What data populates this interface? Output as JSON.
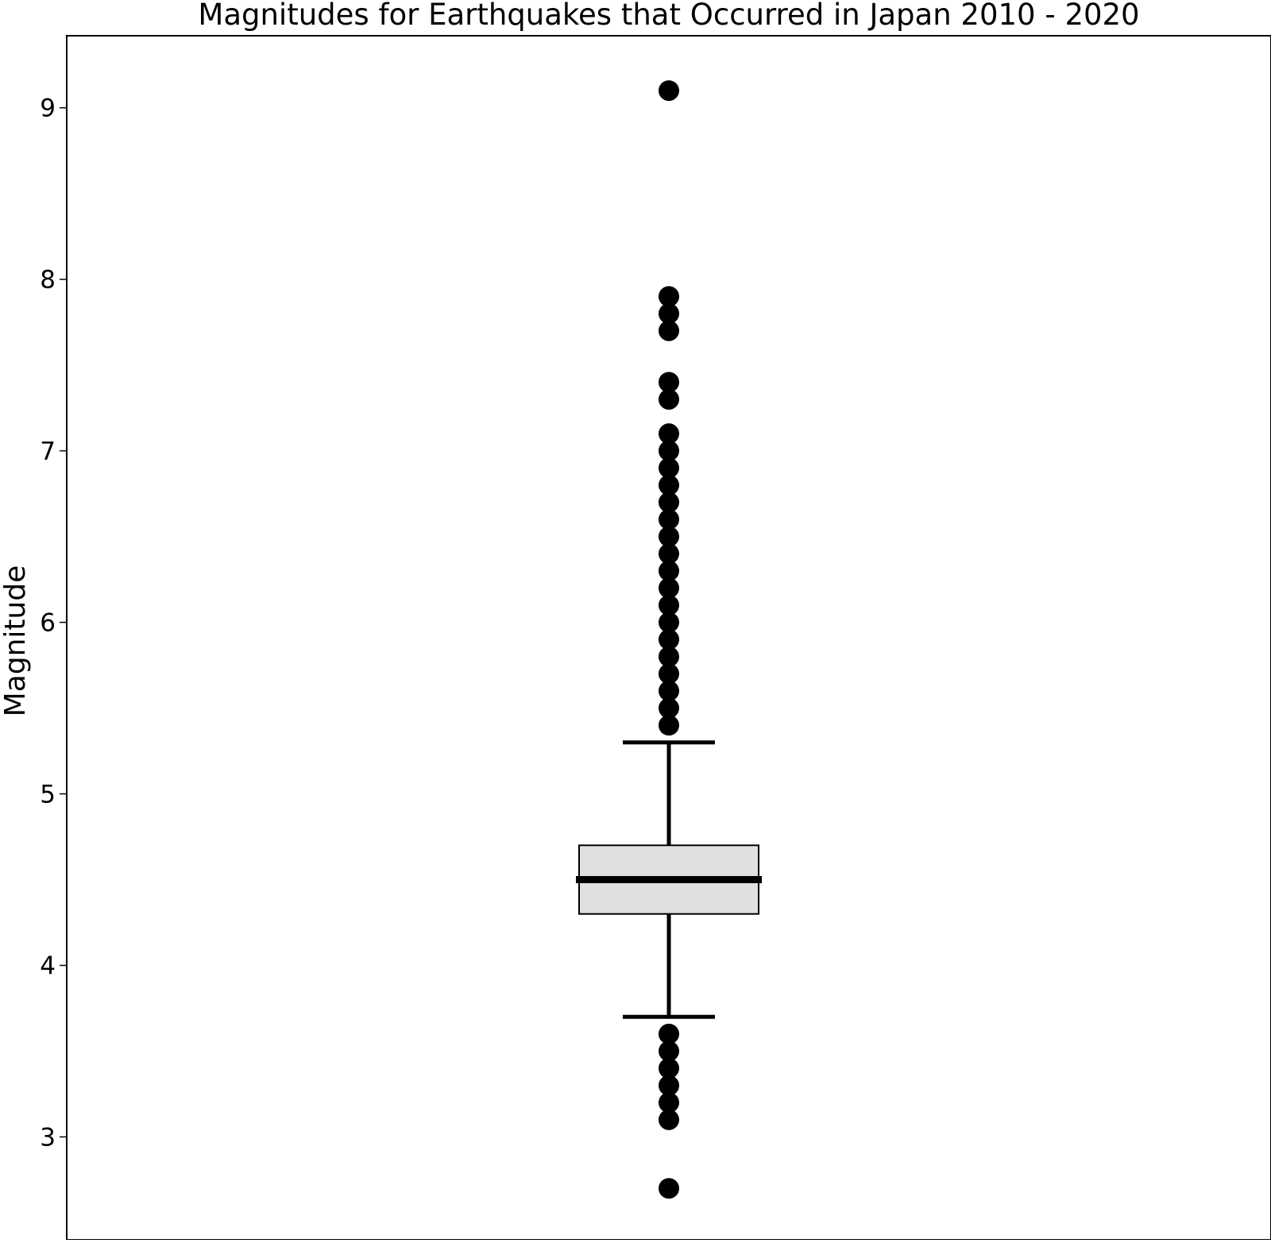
{
  "chart_data": {
    "type": "box",
    "title": "Magnitudes for Earthquakes that Occurred in Japan 2010 - 2020",
    "xlabel": "",
    "ylabel": "Magnitude",
    "ylim": [
      2.4,
      9.42
    ],
    "yticks": [
      3,
      4,
      5,
      6,
      7,
      8,
      9
    ],
    "grid": false,
    "box": {
      "q1": 4.3,
      "median": 4.5,
      "q3": 4.7,
      "whisker_low": 3.7,
      "whisker_high": 5.3,
      "fill_color": "#e0e0e0",
      "line_color": "#000000"
    },
    "outliers": [
      2.7,
      3.1,
      3.2,
      3.3,
      3.4,
      3.5,
      3.6,
      5.4,
      5.5,
      5.6,
      5.7,
      5.8,
      5.9,
      6.0,
      6.1,
      6.2,
      6.3,
      6.4,
      6.5,
      6.6,
      6.7,
      6.8,
      6.9,
      7.0,
      7.1,
      7.3,
      7.4,
      7.7,
      7.8,
      7.9,
      9.1
    ]
  }
}
